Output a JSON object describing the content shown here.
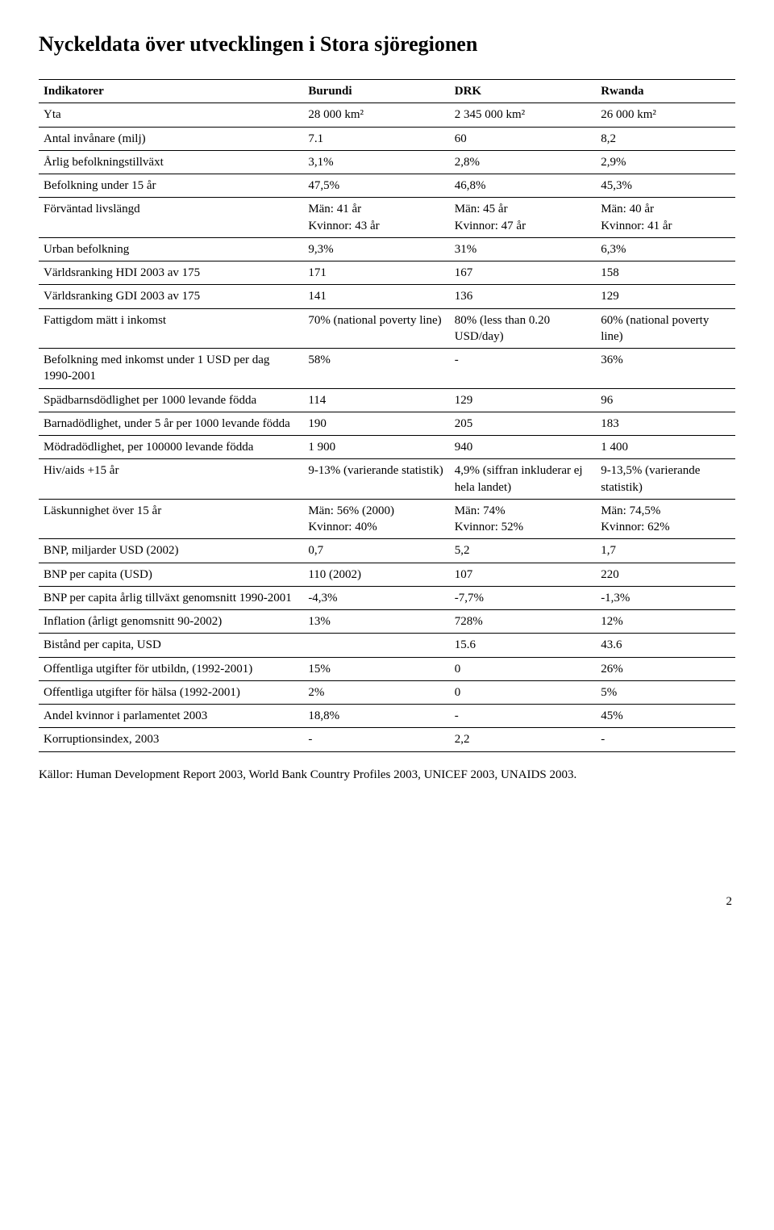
{
  "title": "Nyckeldata över utvecklingen i Stora sjöregionen",
  "columns": [
    "Indikatorer",
    "Burundi",
    "DRK",
    "Rwanda"
  ],
  "rows": [
    {
      "ind": "Yta",
      "b": "28 000 km²",
      "d": "2 345 000 km²",
      "r": "26 000 km²"
    },
    {
      "ind": "Antal invånare (milj)",
      "b": "7.1",
      "d": "60",
      "r": "8,2"
    },
    {
      "ind": "Årlig befolkningstillväxt",
      "b": "3,1%",
      "d": "2,8%",
      "r": "2,9%"
    },
    {
      "ind": "Befolkning under 15 år",
      "b": "47,5%",
      "d": "46,8%",
      "r": "45,3%"
    },
    {
      "ind": "Förväntad livslängd",
      "b": "Män: 41 år\nKvinnor: 43 år",
      "d": "Män: 45 år\nKvinnor: 47 år",
      "r": "Män: 40 år\nKvinnor: 41 år"
    },
    {
      "ind": "Urban befolkning",
      "b": "9,3%",
      "d": "31%",
      "r": "6,3%"
    },
    {
      "ind": "Världsranking HDI 2003 av 175",
      "b": "171",
      "d": "167",
      "r": "158"
    },
    {
      "ind": "Världsranking GDI 2003 av 175",
      "b": "141",
      "d": "136",
      "r": "129"
    },
    {
      "ind": "Fattigdom mätt i inkomst",
      "b": "70% (national poverty line)",
      "d": "80% (less than 0.20 USD/day)",
      "r": "60% (national poverty line)"
    },
    {
      "ind": "Befolkning med inkomst under 1 USD per dag 1990-2001",
      "b": "58%",
      "d": "-",
      "r": "36%"
    },
    {
      "ind": "Spädbarnsdödlighet per 1000 levande födda",
      "b": "114",
      "d": "129",
      "r": "96"
    },
    {
      "ind": "Barnadödlighet, under 5 år per 1000 levande födda",
      "b": "190",
      "d": "205",
      "r": "183"
    },
    {
      "ind": "Mödradödlighet, per 100000 levande födda",
      "b": "1 900",
      "d": "940",
      "r": "1 400"
    },
    {
      "ind": "Hiv/aids +15 år",
      "b": "9-13% (varierande statistik)",
      "d": "4,9% (siffran inkluderar ej hela landet)",
      "r": "9-13,5% (varierande statistik)"
    },
    {
      "ind": "Läskunnighet över 15 år",
      "b": "Män: 56% (2000)\nKvinnor: 40%",
      "d": "Män: 74%\nKvinnor: 52%",
      "r": "Män: 74,5%\nKvinnor: 62%"
    },
    {
      "ind": "BNP, miljarder USD (2002)",
      "b": "0,7",
      "d": "5,2",
      "r": "1,7"
    },
    {
      "ind": "BNP per capita (USD)",
      "b": "110 (2002)",
      "d": "107",
      "r": "220"
    },
    {
      "ind": "BNP per capita årlig tillväxt genomsnitt 1990-2001",
      "b": "-4,3%",
      "d": "-7,7%",
      "r": "-1,3%"
    },
    {
      "ind": "Inflation (årligt genomsnitt 90-2002)",
      "b": "13%",
      "d": "728%",
      "r": "12%"
    },
    {
      "ind": "Bistånd per capita, USD",
      "b": "",
      "d": "15.6",
      "r": "43.6"
    },
    {
      "ind": "Offentliga utgifter för utbildn, (1992-2001)",
      "b": "15%",
      "d": "0",
      "r": "26%"
    },
    {
      "ind": "Offentliga utgifter för hälsa (1992-2001)",
      "b": "2%",
      "d": "0",
      "r": "5%"
    },
    {
      "ind": "Andel kvinnor i parlamentet 2003",
      "b": "18,8%",
      "d": "-",
      "r": "45%"
    },
    {
      "ind": "Korruptionsindex, 2003",
      "b": "-",
      "d": "2,2",
      "r": "-"
    }
  ],
  "sources": "Källor: Human Development Report 2003, World Bank Country Profiles 2003, UNICEF 2003, UNAIDS 2003.",
  "page_number": "2"
}
